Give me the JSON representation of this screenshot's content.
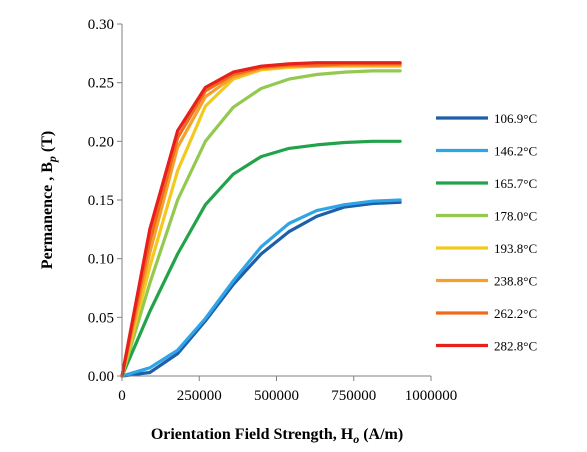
{
  "chart_data": {
    "type": "line",
    "title": "",
    "xlabel": "Orientation Field Strength, H",
    "xlabel_sub": "o",
    "xlabel_unit": " (A/m)",
    "ylabel": "Permanence , B",
    "ylabel_sub": "p",
    "ylabel_unit": " (T)",
    "xlim": [
      0,
      1000000
    ],
    "ylim": [
      0,
      0.3
    ],
    "x_ticks": [
      0,
      250000,
      500000,
      750000,
      1000000
    ],
    "x_tick_labels": [
      "0",
      "250000",
      "500000",
      "750000",
      "1000000"
    ],
    "y_ticks": [
      0,
      0.05,
      0.1,
      0.15,
      0.2,
      0.25,
      0.3
    ],
    "y_tick_labels": [
      "0.00",
      "0.05",
      "0.10",
      "0.15",
      "0.20",
      "0.25",
      "0.30"
    ],
    "grid": false,
    "legend_position": "right",
    "x": [
      0,
      90000,
      180000,
      270000,
      360000,
      450000,
      540000,
      630000,
      720000,
      810000,
      900000
    ],
    "series": [
      {
        "name": "106.9°C",
        "color": "#1F5EA8",
        "values": [
          0,
          0.003,
          0.019,
          0.047,
          0.078,
          0.104,
          0.123,
          0.136,
          0.144,
          0.147,
          0.148
        ]
      },
      {
        "name": "146.2°C",
        "color": "#2FA4E7",
        "values": [
          0,
          0.007,
          0.022,
          0.049,
          0.081,
          0.11,
          0.13,
          0.141,
          0.146,
          0.149,
          0.15
        ]
      },
      {
        "name": "165.7°C",
        "color": "#22A34A",
        "values": [
          0,
          0.055,
          0.104,
          0.146,
          0.172,
          0.187,
          0.194,
          0.197,
          0.199,
          0.2,
          0.2
        ]
      },
      {
        "name": "178.0°C",
        "color": "#92C94E",
        "values": [
          0,
          0.079,
          0.15,
          0.2,
          0.229,
          0.245,
          0.253,
          0.257,
          0.259,
          0.26,
          0.26
        ]
      },
      {
        "name": "193.8°C",
        "color": "#F2C91E",
        "values": [
          0,
          0.093,
          0.175,
          0.23,
          0.253,
          0.261,
          0.263,
          0.264,
          0.264,
          0.264,
          0.264
        ]
      },
      {
        "name": "238.8°C",
        "color": "#F4A12C",
        "values": [
          0,
          0.105,
          0.195,
          0.238,
          0.255,
          0.262,
          0.264,
          0.264,
          0.265,
          0.265,
          0.265
        ]
      },
      {
        "name": "262.2°C",
        "color": "#F06A1E",
        "values": [
          0,
          0.115,
          0.203,
          0.243,
          0.257,
          0.263,
          0.265,
          0.265,
          0.266,
          0.266,
          0.266
        ]
      },
      {
        "name": "282.8°C",
        "color": "#E8201B",
        "values": [
          0,
          0.125,
          0.209,
          0.246,
          0.259,
          0.264,
          0.266,
          0.267,
          0.267,
          0.267,
          0.267
        ]
      }
    ]
  }
}
